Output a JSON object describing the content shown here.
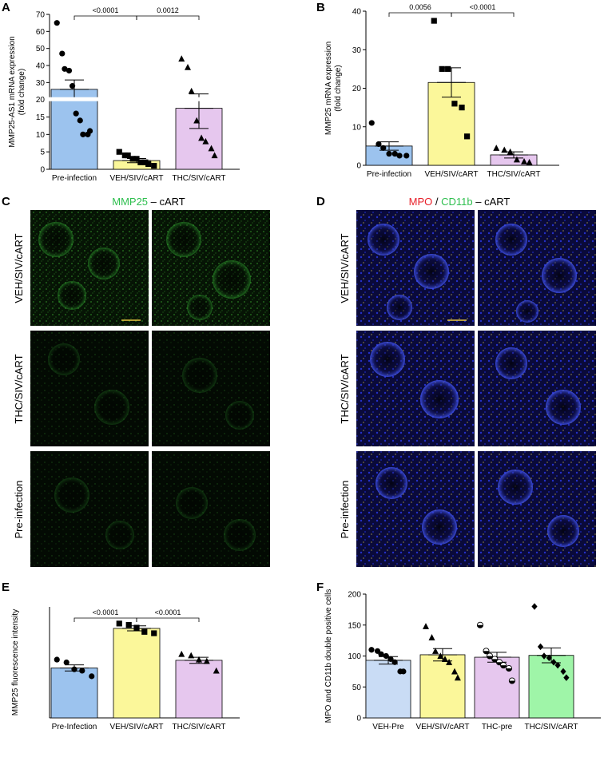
{
  "figure": {
    "panel_c": {
      "letter": "C",
      "title_marker": "MMP25",
      "title_rest": " – cART",
      "title_color": "#2fbf4f",
      "rows": [
        "VEH/SIV/cART",
        "THC/SIV/cART",
        "Pre-infection"
      ]
    },
    "panel_d": {
      "letter": "D",
      "title_a": "MPO",
      "title_sep": " / ",
      "title_b": "CD11b",
      "title_rest": " – cART",
      "color_a": "#e8202a",
      "color_b": "#2fbf4f",
      "rows": [
        "VEH/SIV/cART",
        "THC/SIV/cART",
        "Pre-infection"
      ]
    }
  },
  "chart_data": [
    {
      "panel": "A",
      "type": "bar",
      "ylabel": "MMP25-AS1 mRNA expression\n(fold change)",
      "categories": [
        "Pre-infection",
        "VEH/SIV/cART",
        "THC/SIV/cART"
      ],
      "colors": [
        "#9cc3ee",
        "#fbf79a",
        "#e6c7ee"
      ],
      "markers": [
        "circle",
        "square",
        "triangle"
      ],
      "axis_break": {
        "lower": [
          0,
          20
        ],
        "upper": [
          20,
          70
        ]
      },
      "yticks": [
        0,
        5,
        10,
        15,
        20,
        30,
        40,
        50,
        60,
        70
      ],
      "means": [
        26,
        2.5,
        17.5
      ],
      "sem": [
        5.5,
        0.6,
        5.8
      ],
      "points": [
        [
          65,
          47,
          38,
          37,
          28,
          16,
          14,
          10,
          10,
          11
        ],
        [
          5,
          4,
          4,
          3,
          3,
          2,
          2,
          1.5,
          1
        ],
        [
          44,
          39,
          25,
          14,
          9,
          8,
          6,
          4
        ]
      ],
      "comparisons": [
        {
          "from": 0,
          "to": 1,
          "label": "<0.0001"
        },
        {
          "from": 1,
          "to": 2,
          "label": "0.0012"
        }
      ]
    },
    {
      "panel": "B",
      "type": "bar",
      "ylabel": "MMP25 mRNA expression\n(fold change)",
      "categories": [
        "Pre-infection",
        "VEH/SIV/cART",
        "THC/SIV/cART"
      ],
      "colors": [
        "#9cc3ee",
        "#fbf79a",
        "#e6c7ee"
      ],
      "markers": [
        "circle",
        "square",
        "triangle"
      ],
      "ylim": [
        0,
        40
      ],
      "yticks": [
        0,
        10,
        20,
        30,
        40
      ],
      "means": [
        5,
        21.5,
        2.7
      ],
      "sem": [
        1.1,
        3.8,
        0.8
      ],
      "points": [
        [
          11,
          5.5,
          4.5,
          3,
          3,
          2.5,
          2.5
        ],
        [
          37.5,
          25,
          25,
          16,
          15,
          7.5
        ],
        [
          4.5,
          4,
          3.5,
          1.5,
          1,
          0.8
        ]
      ],
      "comparisons": [
        {
          "from": 0,
          "to": 1,
          "label": "0.0056"
        },
        {
          "from": 1,
          "to": 2,
          "label": "<0.0001"
        }
      ]
    },
    {
      "panel": "E",
      "type": "bar",
      "ylabel": "MMP25 fluorescence intensity",
      "categories": [
        "Pre-Infection",
        "VEH/SIV/cART",
        "THC/SIV/cART"
      ],
      "colors": [
        "#9cc3ee",
        "#fbf79a",
        "#e6c7ee"
      ],
      "markers": [
        "circle",
        "square",
        "triangle"
      ],
      "ylim": [
        0,
        80
      ],
      "yticks": [],
      "means": [
        36,
        64.5,
        41.5
      ],
      "sem": [
        2.2,
        1.8,
        2.2
      ],
      "points": [
        [
          42,
          40,
          35,
          34,
          30
        ],
        [
          68,
          67,
          65,
          62,
          61
        ],
        [
          46,
          45,
          42,
          41,
          34
        ]
      ],
      "comparisons": [
        {
          "from": 0,
          "to": 1,
          "label": "<0.0001"
        },
        {
          "from": 1,
          "to": 2,
          "label": "<0.0001"
        }
      ]
    },
    {
      "panel": "F",
      "type": "bar",
      "ylabel": "MPO and CD11b double positive cells",
      "categories": [
        "VEH-Pre",
        "VEH/SIV/cART",
        "THC-pre",
        "THC/SIV/cART"
      ],
      "colors": [
        "#c9dcf5",
        "#fbf79a",
        "#e6c7ee",
        "#9ff5a8"
      ],
      "markers": [
        "circle",
        "triangle",
        "halfcircle",
        "diamond"
      ],
      "ylim": [
        0,
        200
      ],
      "yticks": [
        0,
        50,
        100,
        150,
        200
      ],
      "means": [
        93,
        102,
        98,
        101
      ],
      "sem": [
        6,
        10,
        8,
        12
      ],
      "points": [
        [
          110,
          108,
          103,
          100,
          95,
          90,
          75,
          75
        ],
        [
          148,
          130,
          108,
          100,
          95,
          90,
          75,
          65
        ],
        [
          150,
          108,
          100,
          95,
          90,
          85,
          80,
          60
        ],
        [
          180,
          115,
          100,
          97,
          90,
          85,
          75,
          65
        ]
      ],
      "comparisons": []
    }
  ]
}
